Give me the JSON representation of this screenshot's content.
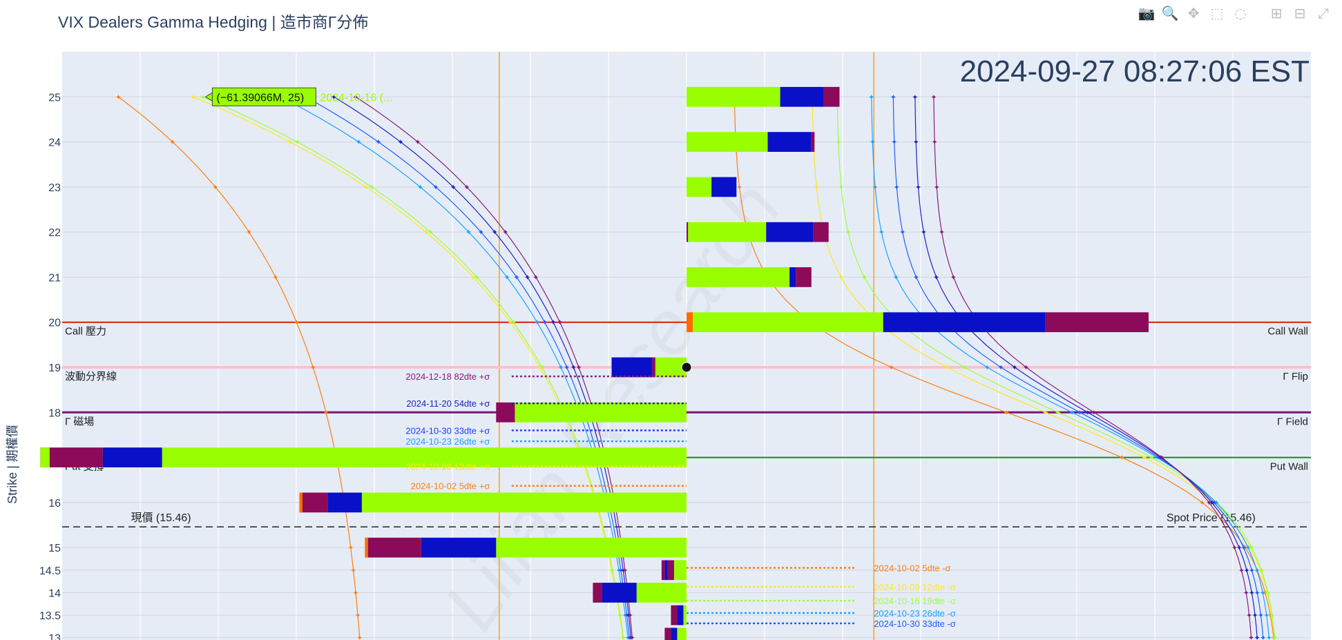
{
  "title": "VIX Dealers Gamma Hedging | 造市商Γ分佈",
  "toolbar": [
    {
      "name": "camera-icon",
      "glyph": "📷"
    },
    {
      "name": "zoom-icon",
      "glyph": "🔍"
    },
    {
      "name": "pan-icon",
      "glyph": "✥"
    },
    {
      "name": "box-select-icon",
      "glyph": "⬚"
    },
    {
      "name": "lasso-select-icon",
      "glyph": "◌"
    },
    {
      "name": "zoom-in-icon",
      "glyph": "⊞"
    },
    {
      "name": "zoom-out-icon",
      "glyph": "⊟"
    },
    {
      "name": "autoscale-icon",
      "glyph": "⤢"
    }
  ],
  "chart_data": {
    "type": "bar",
    "timestamp": "2024-09-27 08:27:06 EST",
    "ylabel": "Strike | 期權價",
    "y_ticks": [
      13,
      13.5,
      14,
      14.5,
      15,
      16,
      17,
      18,
      19,
      20,
      21,
      22,
      23,
      24,
      25
    ],
    "ylim": [
      12.95,
      26.0
    ],
    "xlim": [
      -200,
      200
    ],
    "colors": {
      "maroon": "#8b0a5a",
      "blue": "#0a10c8",
      "green": "#99ff00",
      "orange": "#ff6a00"
    },
    "levels": [
      {
        "value": 20,
        "left": "Call 壓力",
        "right": "Call Wall",
        "color": "#e8150c",
        "width": 2
      },
      {
        "value": 19,
        "left": "波動分界線",
        "right": "Γ Flip",
        "color": "#ffc0cb",
        "width": 4
      },
      {
        "value": 18,
        "left": "Γ 磁場",
        "right": "Γ Field",
        "color": "#7a137a",
        "width": 3
      },
      {
        "value": 17,
        "left": "Put 支撐",
        "right": "Put Wall",
        "color": "#1a8a1a",
        "width": 2
      },
      {
        "value": 15.46,
        "left": "現價 (15.46)",
        "right": "Spot Price (15.46)",
        "color": "#222222",
        "width": 1.5,
        "dash": true
      }
    ],
    "sigma_lines": [
      {
        "x": -60,
        "color": "#ff9f1a"
      },
      {
        "x": 60,
        "color": "#ff9f1a"
      }
    ],
    "gamma_bars": [
      {
        "strike": 25,
        "segments": [
          {
            "c": "green",
            "v": 30
          },
          {
            "c": "blue",
            "v": 14
          },
          {
            "c": "maroon",
            "v": 5
          }
        ]
      },
      {
        "strike": 24,
        "segments": [
          {
            "c": "green",
            "v": 26
          },
          {
            "c": "blue",
            "v": 14
          },
          {
            "c": "maroon",
            "v": 1
          }
        ]
      },
      {
        "strike": 23,
        "segments": [
          {
            "c": "green",
            "v": 8
          },
          {
            "c": "blue",
            "v": 8
          }
        ]
      },
      {
        "strike": 22,
        "segments": [
          {
            "c": "maroon",
            "v": 0.5
          },
          {
            "c": "green",
            "v": 25
          },
          {
            "c": "blue",
            "v": 15
          },
          {
            "c": "maroon",
            "v": 5
          }
        ]
      },
      {
        "strike": 21,
        "segments": [
          {
            "c": "green",
            "v": 33
          },
          {
            "c": "blue",
            "v": 2
          },
          {
            "c": "maroon",
            "v": 5
          }
        ]
      },
      {
        "strike": 20,
        "segments": [
          {
            "c": "orange",
            "v": 2
          },
          {
            "c": "green",
            "v": 61
          },
          {
            "c": "blue",
            "v": 52
          },
          {
            "c": "maroon",
            "v": 33
          }
        ]
      },
      {
        "strike": 19,
        "segments": [
          {
            "c": "green",
            "v": -10
          },
          {
            "c": "maroon",
            "v": -1
          },
          {
            "c": "blue",
            "v": -13
          }
        ]
      },
      {
        "strike": 18,
        "segments": [
          {
            "c": "green",
            "v": -55
          },
          {
            "c": "maroon",
            "v": -6
          }
        ]
      },
      {
        "strike": 17,
        "segments": [
          {
            "c": "green",
            "v": -168
          },
          {
            "c": "blue",
            "v": -19
          },
          {
            "c": "maroon",
            "v": -20
          },
          {
            "c": "green",
            "v": 3
          }
        ]
      },
      {
        "strike": 16,
        "segments": [
          {
            "c": "green",
            "v": -104
          },
          {
            "c": "blue",
            "v": -11
          },
          {
            "c": "maroon",
            "v": -9
          },
          {
            "c": "orange",
            "v": 1
          }
        ]
      },
      {
        "strike": 15,
        "segments": [
          {
            "c": "green",
            "v": -61
          },
          {
            "c": "blue",
            "v": -24
          },
          {
            "c": "maroon",
            "v": -18
          },
          {
            "c": "orange",
            "v": 1
          }
        ]
      },
      {
        "strike": 14.5,
        "segments": [
          {
            "c": "green",
            "v": -4
          },
          {
            "c": "maroon",
            "v": -2
          },
          {
            "c": "blue",
            "v": -1
          },
          {
            "c": "maroon",
            "v": -1
          }
        ]
      },
      {
        "strike": 14,
        "segments": [
          {
            "c": "green",
            "v": -16
          },
          {
            "c": "blue",
            "v": -11
          },
          {
            "c": "maroon",
            "v": -3
          }
        ]
      },
      {
        "strike": 13.5,
        "segments": [
          {
            "c": "green",
            "v": -1
          },
          {
            "c": "blue",
            "v": -2
          },
          {
            "c": "maroon",
            "v": -2
          }
        ]
      },
      {
        "strike": 13,
        "segments": [
          {
            "c": "green",
            "v": -3
          },
          {
            "c": "blue",
            "v": -2
          },
          {
            "c": "maroon",
            "v": -2
          }
        ]
      }
    ],
    "series": [
      {
        "name": "2024-10-02 5dte",
        "color": "#ff7f0e",
        "side": "left",
        "x0": -182,
        "sc": -170,
        "xs": -100
      },
      {
        "name": "2024-10-09 12dte",
        "color": "#ffe81a",
        "side": "left",
        "x0": -158,
        "sc": -112,
        "xs": -12
      },
      {
        "name": "2024-10-16 19dte",
        "color": "#9cff3a",
        "side": "left",
        "x0": -155,
        "sc": -130,
        "xs": -12
      },
      {
        "name": "2024-10-23 26dte",
        "color": "#1aa3ff",
        "side": "left",
        "x0": -130,
        "sc": -95,
        "xs": -12
      },
      {
        "name": "2024-10-30 33dte",
        "color": "#1f5cff",
        "side": "left",
        "x0": -122,
        "sc": -86,
        "xs": -12
      },
      {
        "name": "2024-11-20 54dte",
        "color": "#2020c0",
        "side": "left",
        "x0": -113,
        "sc": -80,
        "xs": -12
      },
      {
        "name": "2024-12-18 82dte",
        "color": "#8b1a7a",
        "side": "left",
        "x0": -106,
        "sc": -75,
        "xs": -12
      },
      {
        "name": "2024-10-02 5dte",
        "color": "#ff7f0e",
        "side": "right",
        "x0": 15,
        "sc": -40,
        "xs": 190
      },
      {
        "name": "2024-10-09 12dte",
        "color": "#ffe81a",
        "side": "right",
        "x0": 40,
        "sc": -20,
        "xs": 190
      },
      {
        "name": "2024-10-16 19dte",
        "color": "#9cff3a",
        "side": "right",
        "x0": 48,
        "sc": -30,
        "xs": 190
      },
      {
        "name": "2024-10-23 26dte",
        "color": "#1aa3ff",
        "side": "right",
        "x0": 59,
        "sc": -22,
        "xs": 188
      },
      {
        "name": "2024-10-30 33dte",
        "color": "#1f5cff",
        "side": "right",
        "x0": 66,
        "sc": -26,
        "xs": 186
      },
      {
        "name": "2024-11-20 54dte",
        "color": "#2020c0",
        "side": "right",
        "x0": 73,
        "sc": -30,
        "xs": 184
      },
      {
        "name": "2024-12-18 82dte",
        "color": "#8b1a7a",
        "side": "right",
        "x0": 79,
        "sc": -34,
        "xs": 182
      }
    ],
    "sigma_labels_plus": [
      {
        "text": "2024-12-18 82dte +σ",
        "strike": 18.8,
        "color": "#8b1a7a"
      },
      {
        "text": "2024-11-20 54dte +σ",
        "strike": 18.2,
        "color": "#2020c0"
      },
      {
        "text": "2024-10-30 33dte +σ",
        "strike": 17.6,
        "color": "#1f3cff"
      },
      {
        "text": "2024-10-23 26dte +σ",
        "strike": 17.36,
        "color": "#1aa3ff"
      },
      {
        "text": "2024-10-16 19dte +σ",
        "strike": 16.8,
        "color": "#9cff3a"
      },
      {
        "text": "2024-10-09 12dte +σ",
        "strike": 16.8,
        "color": "#ffe81a"
      },
      {
        "text": "2024-10-02 5dte +σ",
        "strike": 16.37,
        "color": "#ff7f0e"
      }
    ],
    "sigma_labels_minus": [
      {
        "text": "2024-10-02 5dte -σ",
        "strike": 14.55,
        "color": "#ff7f0e"
      },
      {
        "text": "2024-10-09 12dte -σ",
        "strike": 14.13,
        "color": "#ffe81a"
      },
      {
        "text": "2024-10-16 19dte -σ",
        "strike": 13.82,
        "color": "#9cff3a"
      },
      {
        "text": "2024-10-23 26dte -σ",
        "strike": 13.55,
        "color": "#1aa3ff"
      },
      {
        "text": "2024-10-30 33dte -σ",
        "strike": 13.32,
        "color": "#1f5cff"
      }
    ],
    "tooltip": {
      "text": "(−61.39066M, 25)",
      "name": "2024-10-16 (...",
      "x": -155,
      "strike": 25
    },
    "watermark": "Lilian Research"
  }
}
